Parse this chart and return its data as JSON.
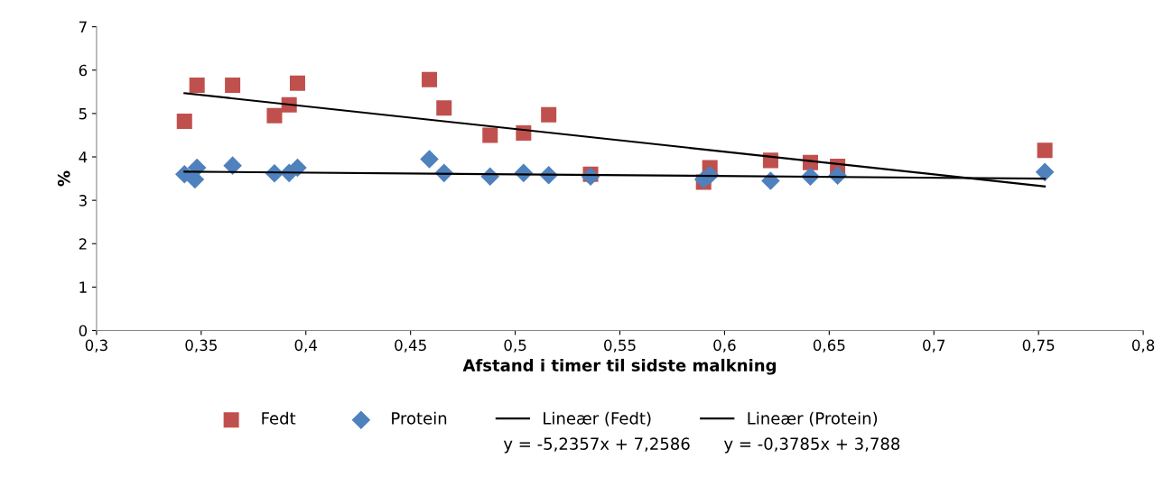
{
  "chart_data": {
    "type": "scatter",
    "xlabel": "Afstand i timer til sidste malkning",
    "ylabel": "%",
    "xlim": [
      0.3,
      0.8
    ],
    "xticks": [
      {
        "value": 0.3,
        "label": "0,3"
      },
      {
        "value": 0.35,
        "label": "0,35"
      },
      {
        "value": 0.4,
        "label": "0,4"
      },
      {
        "value": 0.45,
        "label": "0,45"
      },
      {
        "value": 0.5,
        "label": "0,5"
      },
      {
        "value": 0.55,
        "label": "0,55"
      },
      {
        "value": 0.6,
        "label": "0,6"
      },
      {
        "value": 0.65,
        "label": "0,65"
      },
      {
        "value": 0.7,
        "label": "0,7"
      },
      {
        "value": 0.75,
        "label": "0,75"
      },
      {
        "value": 0.8,
        "label": "0,8"
      }
    ],
    "ylim": [
      0,
      7
    ],
    "yticks": [
      0,
      1,
      2,
      3,
      4,
      5,
      6,
      7
    ],
    "grid": false,
    "legend": "bottom",
    "series": [
      {
        "name": "Fedt",
        "marker": "square",
        "color": "#c0504d",
        "x": [
          0.342,
          0.348,
          0.365,
          0.385,
          0.392,
          0.396,
          0.459,
          0.466,
          0.488,
          0.504,
          0.516,
          0.536,
          0.59,
          0.593,
          0.622,
          0.641,
          0.654,
          0.753
        ],
        "values": [
          4.82,
          5.65,
          5.65,
          4.95,
          5.2,
          5.7,
          5.78,
          5.13,
          4.5,
          4.55,
          4.97,
          3.6,
          3.42,
          3.75,
          3.92,
          3.87,
          3.78,
          4.15
        ]
      },
      {
        "name": "Protein",
        "marker": "diamond",
        "color": "#4f81bd",
        "x": [
          0.342,
          0.347,
          0.348,
          0.365,
          0.385,
          0.392,
          0.396,
          0.459,
          0.466,
          0.488,
          0.504,
          0.516,
          0.536,
          0.59,
          0.593,
          0.622,
          0.641,
          0.654,
          0.753
        ],
        "values": [
          3.6,
          3.48,
          3.75,
          3.8,
          3.62,
          3.63,
          3.75,
          3.95,
          3.63,
          3.55,
          3.63,
          3.58,
          3.55,
          3.48,
          3.58,
          3.45,
          3.55,
          3.57,
          3.65
        ]
      },
      {
        "name": "Lineær (Fedt)",
        "type": "line",
        "marker": "none",
        "line_style": "solid",
        "color": "#000000",
        "x": [
          0.342,
          0.753
        ],
        "values": [
          5.47,
          3.32
        ]
      },
      {
        "name": "Lineær (Protein)",
        "type": "line",
        "marker": "none",
        "line_style": "solid",
        "color": "#000000",
        "x": [
          0.342,
          0.753
        ],
        "values": [
          3.66,
          3.5
        ]
      }
    ],
    "annotations": [
      "y = -5,2357x + 7,2586",
      "y = -0,3785x + 3,788"
    ]
  }
}
